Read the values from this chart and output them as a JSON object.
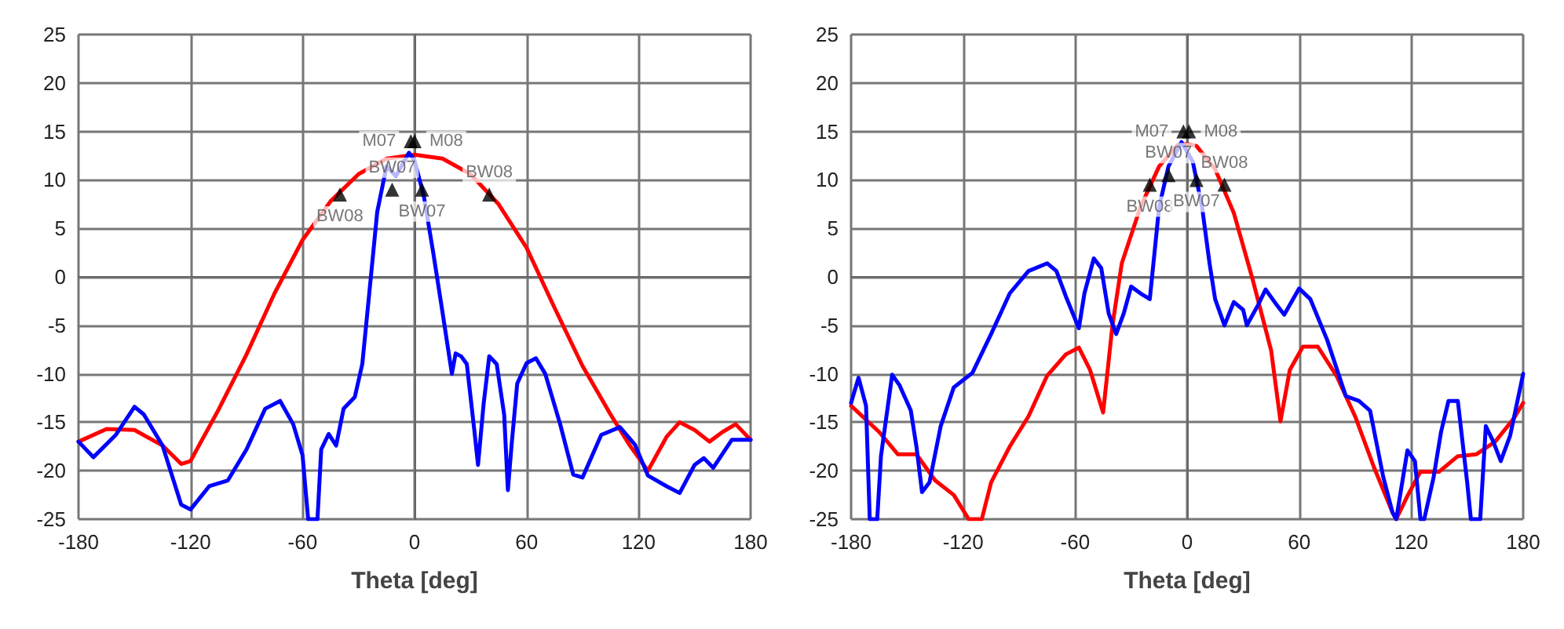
{
  "chart_data": [
    {
      "type": "line",
      "xlabel": "Theta [deg]",
      "xlim": [
        -180,
        180
      ],
      "xticks": [
        -180,
        -120,
        -60,
        0,
        60,
        120,
        180
      ],
      "ylim": [
        -25,
        25
      ],
      "yticks": [
        -25,
        -20,
        -15,
        -10,
        -5,
        0,
        5,
        10,
        15,
        20,
        25
      ],
      "grid": true,
      "marker": "none",
      "line_style": "solid",
      "series": [
        {
          "color": "#ff0000",
          "x": [
            -180,
            -165,
            -150,
            -135,
            -125,
            -120,
            -105,
            -90,
            -75,
            -60,
            -45,
            -30,
            -15,
            0,
            15,
            30,
            45,
            60,
            75,
            90,
            105,
            115,
            125,
            135,
            142,
            150,
            158,
            165,
            172,
            180
          ],
          "values": [
            -17,
            -15.7,
            -15.8,
            -17.4,
            -19.3,
            -19,
            -13.7,
            -8,
            -1.7,
            3.8,
            7.8,
            10.6,
            12.2,
            12.6,
            12.2,
            10.6,
            7.5,
            3,
            -3.2,
            -9.2,
            -14.2,
            -17.3,
            -20,
            -16.5,
            -15,
            -15.8,
            -17,
            -16,
            -15.2,
            -16.8
          ]
        },
        {
          "color": "#0000ff",
          "x": [
            -180,
            -172,
            -160,
            -150,
            -145,
            -135,
            -125,
            -120,
            -110,
            -100,
            -90,
            -80,
            -72,
            -65,
            -60,
            -57,
            -55,
            -52,
            -50,
            -46,
            -42,
            -38,
            -32,
            -28,
            -24,
            -20,
            -15,
            -10,
            -3,
            0,
            5,
            10,
            15,
            20,
            22,
            25,
            28,
            32,
            34,
            37,
            40,
            44,
            48,
            50,
            52,
            55,
            60,
            65,
            70,
            78,
            85,
            90,
            100,
            110,
            118,
            125,
            135,
            142,
            150,
            155,
            160,
            170,
            180
          ],
          "values": [
            -17,
            -18.6,
            -16.3,
            -13.4,
            -14.2,
            -17.4,
            -23.5,
            -24,
            -21.6,
            -21,
            -17.8,
            -13.6,
            -12.8,
            -15.2,
            -18.4,
            -25,
            -25,
            -25,
            -17.8,
            -16.2,
            -17.4,
            -13.6,
            -12.4,
            -9,
            -1.2,
            6.7,
            11.4,
            10.4,
            12.8,
            12,
            8.3,
            2.5,
            -3.7,
            -10,
            -7.9,
            -8.2,
            -9,
            -15.8,
            -19.4,
            -13.1,
            -8.2,
            -9,
            -14.2,
            -22,
            -17.3,
            -11,
            -8.9,
            -8.4,
            -10,
            -15.2,
            -20.4,
            -20.7,
            -16.3,
            -15.5,
            -17.3,
            -20.5,
            -21.6,
            -22.3,
            -19.4,
            -18.7,
            -19.7,
            -16.8,
            -16.8
          ]
        }
      ],
      "annotations": [
        {
          "text": "M07",
          "x": -2,
          "y": 14
        },
        {
          "text": "M08",
          "x": 0,
          "y": 14
        },
        {
          "text": "BW08",
          "x": -40,
          "y": 8.5
        },
        {
          "text": "BW07",
          "x": -12,
          "y": 9
        },
        {
          "text": "BW07",
          "x": 4,
          "y": 9
        },
        {
          "text": "BW08",
          "x": 40,
          "y": 8.5
        }
      ]
    },
    {
      "type": "line",
      "xlabel": "Theta [deg]",
      "xlim": [
        -180,
        180
      ],
      "xticks": [
        -180,
        -120,
        -60,
        0,
        60,
        120,
        180
      ],
      "ylim": [
        -25,
        25
      ],
      "yticks": [
        -25,
        -20,
        -15,
        -10,
        -5,
        0,
        5,
        10,
        15,
        20,
        25
      ],
      "grid": true,
      "marker": "none",
      "line_style": "solid",
      "series": [
        {
          "color": "#ff0000",
          "x": [
            -180,
            -165,
            -155,
            -145,
            -135,
            -125,
            -117,
            -110,
            -105,
            -95,
            -85,
            -75,
            -65,
            -58,
            -52,
            -45,
            -40,
            -35,
            -25,
            -15,
            -5,
            0,
            5,
            15,
            25,
            35,
            45,
            50,
            55,
            62,
            70,
            80,
            90,
            100,
            110,
            112,
            118,
            125,
            135,
            145,
            155,
            165,
            175,
            180
          ],
          "values": [
            -13.3,
            -16,
            -18.3,
            -18.3,
            -21,
            -22.5,
            -25,
            -25,
            -21.2,
            -17.5,
            -14.4,
            -10.2,
            -8,
            -7.3,
            -9.6,
            -14,
            -5,
            1.4,
            7.2,
            11.4,
            13.6,
            13.7,
            13.5,
            11.1,
            6.6,
            -0.2,
            -7.6,
            -14.9,
            -9.6,
            -7.2,
            -7.2,
            -10.2,
            -14.4,
            -19.6,
            -24.3,
            -25,
            -22.6,
            -20.1,
            -20.1,
            -18.5,
            -18.3,
            -17,
            -14.6,
            -13
          ]
        },
        {
          "color": "#0000ff",
          "x": [
            -180,
            -176,
            -172,
            -170,
            -166,
            -164,
            -158,
            -154,
            -148,
            -145,
            -142,
            -138,
            -132,
            -125,
            -115,
            -105,
            -95,
            -85,
            -75,
            -70,
            -65,
            -58,
            -55,
            -50,
            -46,
            -42,
            -38,
            -34,
            -30,
            -25,
            -20,
            -15,
            -10,
            -3,
            3,
            8,
            12,
            15,
            20,
            25,
            30,
            32,
            38,
            42,
            48,
            52,
            60,
            66,
            75,
            85,
            92,
            98,
            105,
            110,
            112,
            118,
            122,
            125,
            127,
            132,
            136,
            140,
            145,
            150,
            152,
            157,
            160,
            164,
            168,
            173,
            180
          ],
          "values": [
            -13,
            -10.4,
            -13.3,
            -25,
            -25,
            -18.5,
            -10.1,
            -11.2,
            -13.8,
            -17.5,
            -22.2,
            -21.2,
            -15.4,
            -11.4,
            -9.9,
            -5.9,
            -1.7,
            0.6,
            1.4,
            0.6,
            -2,
            -5.3,
            -1.7,
            1.9,
            0.9,
            -3.8,
            -5.9,
            -3.8,
            -1,
            -1.7,
            -2.3,
            7.2,
            11.4,
            13.9,
            11.9,
            7.2,
            1.4,
            -2.3,
            -5,
            -2.6,
            -3.4,
            -5,
            -2.9,
            -1.3,
            -2.9,
            -3.9,
            -1.2,
            -2.3,
            -6.5,
            -12.3,
            -12.8,
            -13.8,
            -20.6,
            -24.3,
            -25,
            -17.9,
            -19,
            -25,
            -25,
            -20.7,
            -16,
            -12.8,
            -12.8,
            -21.2,
            -25,
            -25,
            -15.4,
            -17,
            -19,
            -16.4,
            -10
          ]
        }
      ],
      "annotations": [
        {
          "text": "M07",
          "x": -2,
          "y": 15
        },
        {
          "text": "M08",
          "x": 1,
          "y": 15
        },
        {
          "text": "BW08",
          "x": -20,
          "y": 9.5
        },
        {
          "text": "BW07",
          "x": -10,
          "y": 10.5
        },
        {
          "text": "BW07",
          "x": 5,
          "y": 10
        },
        {
          "text": "BW08",
          "x": 20,
          "y": 9.5
        }
      ]
    }
  ]
}
